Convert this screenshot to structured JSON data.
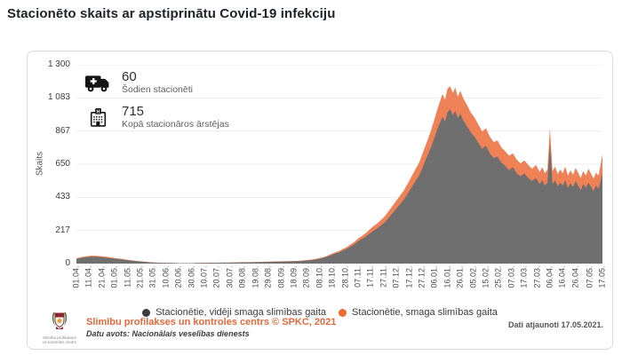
{
  "title": "Stacionēto skaits ar apstiprinātu Covid-19 infekciju",
  "colors": {
    "area_moderate": "#6f6f6f",
    "area_severe": "#ef8156",
    "legend_dot_moderate": "#3b3b3b",
    "legend_dot_severe": "#ee6c30",
    "grid": "#ececec",
    "footer_org_orange": "#e5683b",
    "card_border": "#d9d9d9"
  },
  "stats": [
    {
      "icon": "ambulance-icon",
      "value": "60",
      "label": "Šodien stacionēti"
    },
    {
      "icon": "hospital-icon",
      "value": "715",
      "label": "Kopā stacionāros ārstējas"
    }
  ],
  "legend": {
    "items": [
      {
        "label": "Stacionētie, vidēji smaga slimības gaita",
        "color": "#3b3b3b"
      },
      {
        "label": "Stacionētie, smaga slimības gaita",
        "color": "#ee6c30"
      }
    ]
  },
  "footer": {
    "logo_caption": "Slimību profilakses un kontroles centrs",
    "org_name": "Slimību profilakses un kontroles centrs © SPKC, 2021",
    "data_source": "Datu avots: Nacionālais veselības dienests",
    "updated": "Dati atjaunoti 17.05.2021."
  },
  "chart_data": {
    "type": "area",
    "stacked": true,
    "title": "Stacionēto skaits ar apstiprinātu Covid-19 infekciju",
    "xlabel": "",
    "ylabel": "Skaits",
    "ylim": [
      0,
      1300
    ],
    "grid": true,
    "legend_position": "bottom",
    "yticks": {
      "values": [
        0,
        217,
        433,
        650,
        867,
        1083,
        1300
      ],
      "labels": [
        "0",
        "217",
        "433",
        "650",
        "867",
        "1 083",
        "1 300"
      ]
    },
    "xticks": {
      "days": [
        0,
        10,
        20,
        30,
        40,
        50,
        60,
        70,
        80,
        90,
        100,
        110,
        120,
        130,
        140,
        150,
        160,
        170,
        180,
        190,
        200,
        210,
        220,
        230,
        240,
        250,
        260,
        270,
        280,
        290,
        300,
        310,
        320,
        330,
        340,
        350,
        360,
        370,
        380,
        390,
        401,
        411
      ],
      "labels": [
        "01.04.",
        "11.04.",
        "21.04.",
        "01.05.",
        "11.05.",
        "21.05.",
        "31.05.",
        "10.06.",
        "20.06.",
        "30.06.",
        "10.07.",
        "20.07.",
        "30.07.",
        "09.08.",
        "19.08.",
        "29.08.",
        "08.09.",
        "18.09.",
        "28.09.",
        "08.10.",
        "18.10.",
        "28.10.",
        "07.11.",
        "17.11.",
        "27.11.",
        "07.12.",
        "17.12.",
        "27.12.",
        "06.01.",
        "16.01.",
        "26.01.",
        "05.02.",
        "15.02.",
        "25.02.",
        "07.03.",
        "17.03.",
        "27.03.",
        "06.04.",
        "16.04.",
        "26.04.",
        "07.05.",
        "17.05."
      ]
    },
    "x": [
      0,
      4,
      8,
      12,
      16,
      20,
      24,
      28,
      32,
      36,
      40,
      44,
      48,
      52,
      56,
      60,
      65,
      70,
      75,
      80,
      85,
      90,
      95,
      100,
      105,
      110,
      115,
      120,
      125,
      130,
      135,
      140,
      145,
      150,
      155,
      160,
      165,
      170,
      175,
      180,
      185,
      190,
      193,
      196,
      199,
      202,
      205,
      208,
      211,
      214,
      217,
      220,
      223,
      226,
      229,
      232,
      235,
      238,
      241,
      244,
      247,
      250,
      253,
      256,
      259,
      262,
      265,
      268,
      271,
      274,
      277,
      280,
      282,
      284,
      286,
      288,
      290,
      292,
      294,
      296,
      298,
      300,
      302,
      305,
      308,
      311,
      314,
      317,
      320,
      323,
      326,
      329,
      332,
      335,
      338,
      341,
      344,
      347,
      350,
      353,
      356,
      359,
      362,
      364,
      366,
      368,
      370,
      372,
      374,
      376,
      378,
      380,
      382,
      384,
      386,
      388,
      390,
      392,
      394,
      396,
      398,
      400,
      402,
      404,
      406,
      408,
      411
    ],
    "series": [
      {
        "name": "Stacionētie, vidēji smaga slimības gaita",
        "color": "#6f6f6f",
        "values": [
          30,
          38,
          42,
          45,
          44,
          42,
          38,
          34,
          30,
          26,
          22,
          18,
          15,
          12,
          9,
          7,
          5,
          4,
          4,
          3,
          3,
          3,
          4,
          4,
          5,
          5,
          6,
          6,
          7,
          8,
          8,
          9,
          10,
          11,
          12,
          13,
          14,
          15,
          17,
          20,
          25,
          32,
          38,
          45,
          55,
          65,
          72,
          85,
          95,
          110,
          125,
          145,
          160,
          175,
          195,
          215,
          230,
          250,
          270,
          300,
          330,
          360,
          390,
          420,
          460,
          500,
          540,
          580,
          640,
          700,
          760,
          830,
          880,
          920,
          960,
          930,
          990,
          1010,
          970,
          1000,
          950,
          980,
          940,
          900,
          860,
          830,
          790,
          750,
          770,
          720,
          690,
          700,
          660,
          640,
          610,
          630,
          590,
          570,
          590,
          560,
          540,
          560,
          520,
          545,
          510,
          530,
          790,
          520,
          545,
          505,
          530,
          510,
          545,
          495,
          525,
          500,
          540,
          510,
          480,
          520,
          495,
          530,
          505,
          475,
          510,
          490,
          590
        ]
      },
      {
        "name": "Stacionētie, smaga slimības gaita",
        "color": "#ef8156",
        "values": [
          4,
          5,
          6,
          7,
          7,
          6,
          6,
          5,
          4,
          4,
          3,
          3,
          2,
          2,
          1,
          1,
          1,
          1,
          0,
          0,
          0,
          0,
          0,
          1,
          1,
          1,
          1,
          1,
          1,
          1,
          1,
          1,
          1,
          2,
          2,
          2,
          2,
          2,
          2,
          3,
          3,
          4,
          5,
          6,
          7,
          8,
          9,
          10,
          12,
          14,
          16,
          18,
          20,
          24,
          26,
          30,
          32,
          36,
          40,
          44,
          48,
          52,
          56,
          60,
          66,
          72,
          78,
          84,
          92,
          100,
          110,
          120,
          130,
          140,
          150,
          140,
          155,
          150,
          145,
          150,
          140,
          150,
          145,
          140,
          130,
          125,
          120,
          115,
          115,
          110,
          105,
          105,
          100,
          95,
          95,
          90,
          90,
          85,
          85,
          85,
          80,
          85,
          80,
          85,
          80,
          85,
          95,
          85,
          90,
          80,
          85,
          80,
          90,
          80,
          85,
          80,
          85,
          85,
          80,
          85,
          80,
          90,
          85,
          80,
          85,
          85,
          125
        ]
      }
    ]
  }
}
